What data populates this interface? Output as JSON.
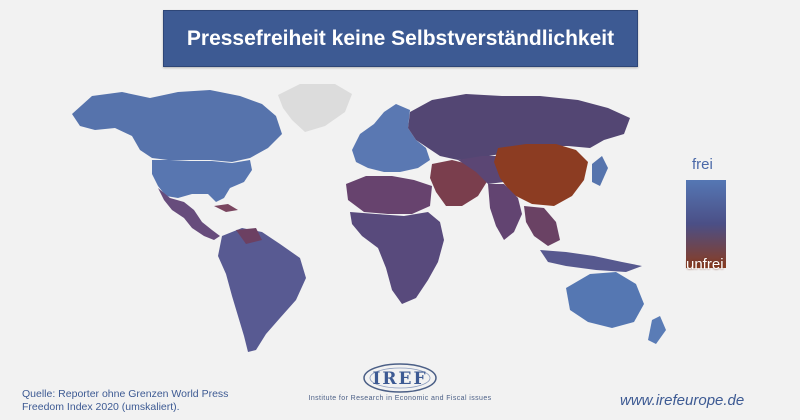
{
  "title": "Pressefreiheit keine Selbstverständlichkeit",
  "legend": {
    "top_label": "frei",
    "bottom_label": "unfrei",
    "colors": {
      "free": "#5577b4",
      "mid": "#4b4f86",
      "unfree": "#8a3d22"
    }
  },
  "source": "Quelle: Reporter ohne Grenzen World Press Freedom Index 2020 (umskaliert).",
  "logo": {
    "name": "IREF",
    "subtitle": "Institute for Research in Economic and Fiscal issues"
  },
  "website": "www.irefeurope.de"
}
